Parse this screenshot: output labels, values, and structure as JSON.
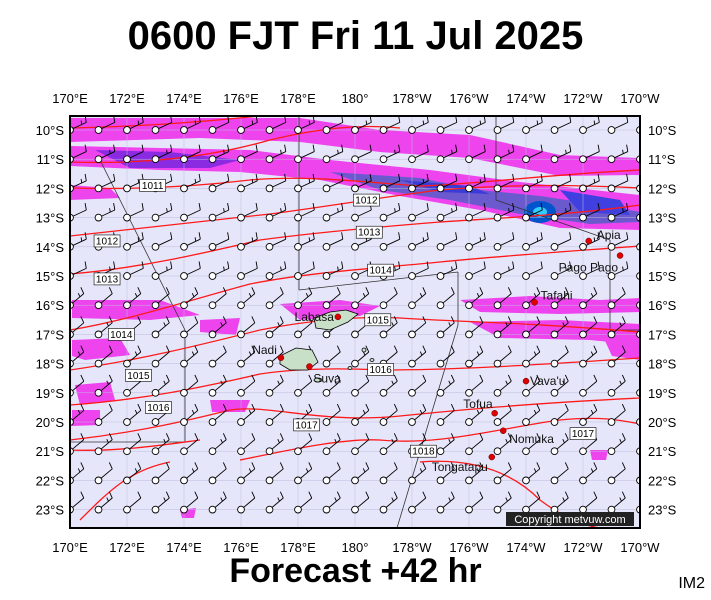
{
  "title": "0600 FJT Fri 11 Jul 2025",
  "subtitle": "Forecast +42 hr",
  "code": "IM2",
  "copyright": "Copyright metvuw.com",
  "lon_labels": [
    "170°E",
    "172°E",
    "174°E",
    "176°E",
    "178°E",
    "180°",
    "178°W",
    "176°W",
    "174°W",
    "172°W",
    "170°W"
  ],
  "lat_labels": [
    "10°S",
    "11°S",
    "12°S",
    "13°S",
    "14°S",
    "15°S",
    "16°S",
    "17°S",
    "18°S",
    "19°S",
    "20°S",
    "21°S",
    "22°S",
    "23°S"
  ],
  "places": [
    {
      "name": "Apia",
      "lon": -171.8,
      "lat": -13.8
    },
    {
      "name": "Pago Pago",
      "lon": -170.7,
      "lat": -14.3
    },
    {
      "name": "Tafahi",
      "lon": -173.7,
      "lat": -15.9
    },
    {
      "name": "Labasa",
      "lon": 179.4,
      "lat": -16.4
    },
    {
      "name": "Nadi",
      "lon": 177.4,
      "lat": -17.8
    },
    {
      "name": "Suva",
      "lon": 178.4,
      "lat": -18.1
    },
    {
      "name": "Vava'u",
      "lon": -174.0,
      "lat": -18.6
    },
    {
      "name": "Tofua",
      "lon": -175.1,
      "lat": -19.7
    },
    {
      "name": "Nomuka",
      "lon": -174.8,
      "lat": -20.3
    },
    {
      "name": "Tongatapu",
      "lon": -175.2,
      "lat": -21.2
    }
  ],
  "isobar_labels": [
    {
      "text": "1011",
      "lon": 172.9,
      "lat": -11.9
    },
    {
      "text": "1012",
      "lon": -179.6,
      "lat": -12.4
    },
    {
      "text": "1012",
      "lon": 171.3,
      "lat": -13.8
    },
    {
      "text": "1013",
      "lon": -179.5,
      "lat": -13.5
    },
    {
      "text": "1013",
      "lon": 171.3,
      "lat": -15.1
    },
    {
      "text": "1014",
      "lon": -179.1,
      "lat": -14.8
    },
    {
      "text": "1014",
      "lon": 171.8,
      "lat": -17.0
    },
    {
      "text": "1015",
      "lon": -179.2,
      "lat": -16.5
    },
    {
      "text": "1015",
      "lon": 172.4,
      "lat": -18.4
    },
    {
      "text": "1016",
      "lon": -179.1,
      "lat": -18.2
    },
    {
      "text": "1016",
      "lon": 173.1,
      "lat": -19.5
    },
    {
      "text": "1017",
      "lon": 178.3,
      "lat": -20.1
    },
    {
      "text": "1017",
      "lon": -172.0,
      "lat": -20.4
    },
    {
      "text": "1018",
      "lon": -177.6,
      "lat": -21.0
    }
  ]
}
